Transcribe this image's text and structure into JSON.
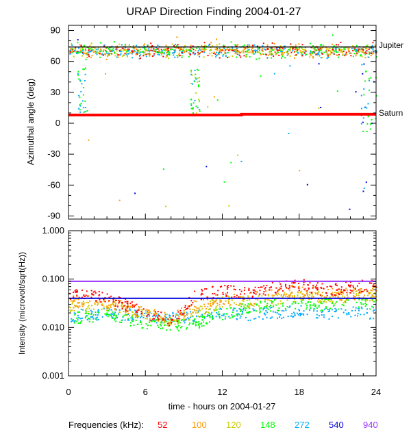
{
  "chart_data": [
    {
      "id": "azimuth",
      "type": "scatter",
      "title": "URAP Direction Finding  2004-01-27",
      "ylabel": "Azimuthal angle (deg)",
      "xlim": [
        0,
        24
      ],
      "ylim": [
        -93,
        95
      ],
      "yticks": [
        90,
        60,
        30,
        0,
        -30,
        -60,
        -90
      ],
      "ytick_labels": [
        "90",
        "60",
        "30",
        "0",
        "-30",
        "-60",
        "-90"
      ],
      "annotations": [
        {
          "label": "Jupiter",
          "y": 74
        },
        {
          "label": "Saturn",
          "y": 9
        }
      ],
      "series": [
        {
          "name": "Jupiter track",
          "kind": "line",
          "color": "#000000",
          "x": [
            0,
            24
          ],
          "y": [
            74,
            74
          ]
        },
        {
          "name": "Saturn track",
          "kind": "line",
          "color": "#ff0000",
          "x": [
            0,
            13.5,
            13.5,
            24
          ],
          "y": [
            8,
            8,
            8.7,
            8.7
          ]
        },
        {
          "name": "Jupiter band",
          "kind": "cluster",
          "colors": [
            "#ff0000",
            "#ff9900",
            "#cccc00",
            "#00ff00",
            "#00aaff"
          ],
          "x_range": [
            0,
            24
          ],
          "y_center": 71,
          "y_spread": 5,
          "density": 45
        },
        {
          "name": "Excursion ~1h",
          "kind": "cluster",
          "colors": [
            "#00aaff",
            "#00ff00"
          ],
          "x_range": [
            0.6,
            1.3
          ],
          "y_range": [
            0,
            55
          ],
          "density": 30
        },
        {
          "name": "Excursion ~10h",
          "kind": "cluster",
          "colors": [
            "#00ff00",
            "#00aaff",
            "#cccc00"
          ],
          "x_range": [
            9.5,
            10.2
          ],
          "y_range": [
            10,
            55
          ],
          "density": 40
        },
        {
          "name": "Excursion ~23.5h",
          "kind": "cluster",
          "colors": [
            "#00aaff",
            "#0000dd",
            "#00ff00"
          ],
          "x_range": [
            22.8,
            24
          ],
          "y_range": [
            -8,
            60
          ],
          "density": 35
        }
      ]
    },
    {
      "id": "intensity",
      "type": "scatter",
      "ylabel": "Intensity (microvolt/sqrt(Hz))",
      "xlabel": "time - hours on 2004-01-27",
      "xlim": [
        0,
        24
      ],
      "ylim": [
        0.001,
        1.0
      ],
      "yscale": "log",
      "yticks": [
        1.0,
        0.1,
        0.01,
        0.001
      ],
      "ytick_labels": [
        "1.000",
        "0.100",
        "0.010",
        "0.001"
      ],
      "xticks": [
        0,
        6,
        12,
        18,
        24
      ],
      "xtick_labels": [
        "0",
        "6",
        "12",
        "18",
        "24"
      ],
      "series": [
        {
          "name": "940 kHz level",
          "kind": "line",
          "color": "#9933ff",
          "x": [
            0,
            24
          ],
          "y": [
            0.09,
            0.09
          ]
        },
        {
          "name": "540 kHz level",
          "kind": "line",
          "color": "#0000dd",
          "x": [
            0,
            24
          ],
          "y": [
            0.04,
            0.04
          ]
        },
        {
          "name": "272 kHz",
          "kind": "trend",
          "color": "#00aaff",
          "x": [
            0,
            3,
            6,
            8,
            10,
            12,
            14,
            16,
            18,
            20,
            22,
            24
          ],
          "y": [
            0.018,
            0.02,
            0.018,
            0.016,
            0.018,
            0.021,
            0.019,
            0.021,
            0.022,
            0.02,
            0.021,
            0.02
          ]
        },
        {
          "name": "148 kHz",
          "kind": "trend",
          "color": "#00ff00",
          "x": [
            0,
            3,
            6,
            8,
            10,
            12,
            14,
            16,
            18,
            20,
            22,
            24
          ],
          "y": [
            0.016,
            0.018,
            0.013,
            0.011,
            0.013,
            0.02,
            0.025,
            0.03,
            0.032,
            0.03,
            0.03,
            0.03
          ]
        },
        {
          "name": "120 kHz",
          "kind": "trend",
          "color": "#cccc00",
          "x": [
            0,
            3,
            6,
            8,
            10,
            12,
            14,
            16,
            18,
            20,
            22,
            24
          ],
          "y": [
            0.025,
            0.03,
            0.018,
            0.014,
            0.022,
            0.035,
            0.035,
            0.04,
            0.05,
            0.04,
            0.045,
            0.05
          ]
        },
        {
          "name": "100 kHz",
          "kind": "trend",
          "color": "#ff9900",
          "x": [
            0,
            3,
            6,
            8,
            10,
            12,
            14,
            16,
            18,
            20,
            22,
            24
          ],
          "y": [
            0.035,
            0.035,
            0.02,
            0.015,
            0.03,
            0.04,
            0.04,
            0.05,
            0.06,
            0.05,
            0.05,
            0.06
          ]
        },
        {
          "name": "52 kHz",
          "kind": "trend",
          "color": "#ff0000",
          "x": [
            0,
            3,
            6,
            8,
            10,
            12,
            14,
            16,
            18,
            20,
            22,
            24
          ],
          "y": [
            0.05,
            0.045,
            0.02,
            0.014,
            0.05,
            0.06,
            0.05,
            0.07,
            0.08,
            0.06,
            0.07,
            0.08
          ]
        }
      ]
    }
  ],
  "legend": {
    "title": "Frequencies (kHz):",
    "items": [
      {
        "label": "52",
        "color": "#ff0000"
      },
      {
        "label": "100",
        "color": "#ff9900"
      },
      {
        "label": "120",
        "color": "#cccc00"
      },
      {
        "label": "148",
        "color": "#00ff00"
      },
      {
        "label": "272",
        "color": "#00aaff"
      },
      {
        "label": "540",
        "color": "#0000dd"
      },
      {
        "label": "940",
        "color": "#9933ff"
      }
    ]
  }
}
